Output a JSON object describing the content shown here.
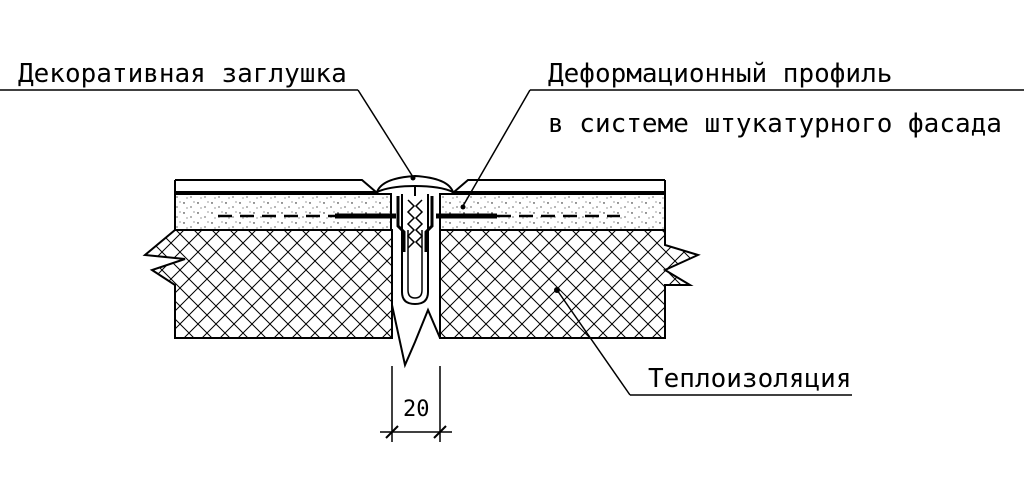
{
  "labels": {
    "decorative_cap": "Декоративная заглушка",
    "profile_line1": "Деформационный профиль",
    "profile_line2": "в системе штукатурного фасада",
    "insulation": "Теплоизоляция"
  },
  "dimension": {
    "gap_width": "20"
  },
  "colors": {
    "line": "#000000",
    "background": "#ffffff"
  }
}
